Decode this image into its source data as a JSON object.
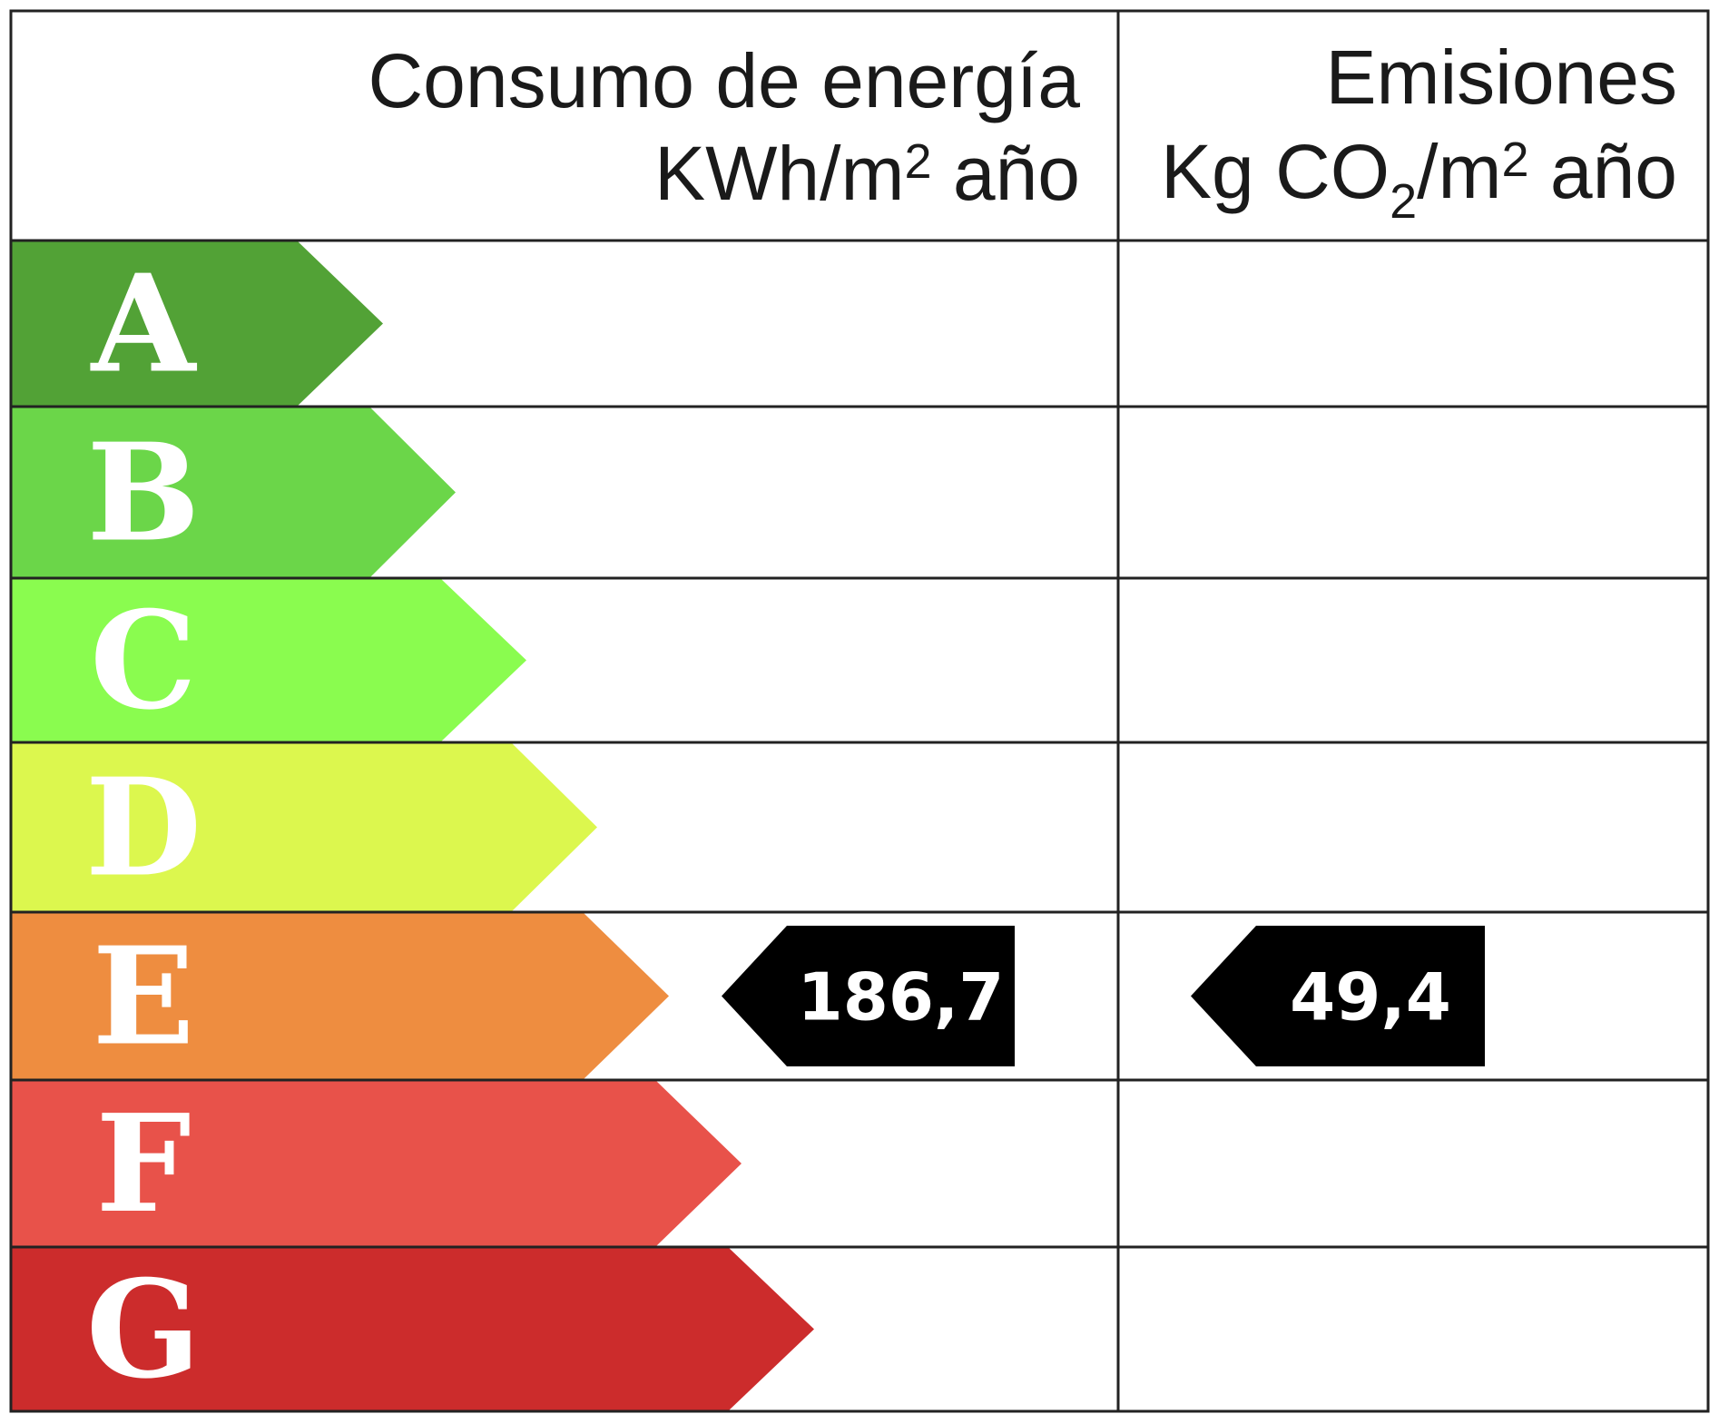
{
  "header": {
    "energy": {
      "line1": "Consumo de energía",
      "line2_prefix": "KWh/m",
      "line2_sup": "2",
      "line2_suffix": " año"
    },
    "emissions": {
      "line1": "Emisiones",
      "line2_prefix": "Kg CO",
      "line2_sub": "2",
      "line2_mid": "/m",
      "line2_sup": "2",
      "line2_suffix": " año"
    }
  },
  "grades": [
    {
      "letter": "A",
      "color": "#52a236"
    },
    {
      "letter": "B",
      "color": "#6bd649"
    },
    {
      "letter": "C",
      "color": "#8afc4f"
    },
    {
      "letter": "D",
      "color": "#dcf74e"
    },
    {
      "letter": "E",
      "color": "#ee8d40"
    },
    {
      "letter": "F",
      "color": "#e8524a"
    },
    {
      "letter": "G",
      "color": "#cc2c2c"
    }
  ],
  "ratings": {
    "energy": {
      "grade": "E",
      "value": "186,7"
    },
    "emissions": {
      "grade": "E",
      "value": "49,4"
    }
  },
  "colors": {
    "marker": "#000000",
    "grid": "#222222"
  }
}
